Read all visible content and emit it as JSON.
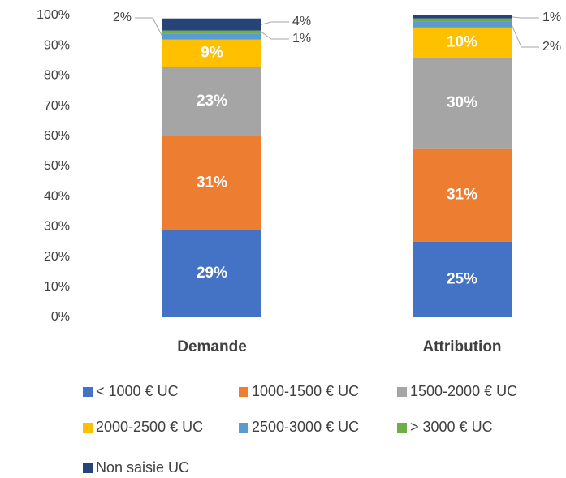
{
  "chart_data": {
    "type": "stacked_bar",
    "categories": [
      "Demande",
      "Attribution"
    ],
    "series": [
      {
        "name": "< 1000 € UC",
        "color": "#4472c4",
        "values": [
          29,
          25
        ],
        "value_labels": [
          "29%",
          "25%"
        ]
      },
      {
        "name": "1000-1500 € UC",
        "color": "#ed7d31",
        "values": [
          31,
          31
        ],
        "value_labels": [
          "31%",
          "31%"
        ]
      },
      {
        "name": "1500-2000 € UC",
        "color": "#a5a5a5",
        "values": [
          23,
          30
        ],
        "value_labels": [
          "23%",
          "30%"
        ]
      },
      {
        "name": "2000-2500 € UC",
        "color": "#ffc000",
        "values": [
          9,
          10
        ],
        "value_labels": [
          "9%",
          "10%"
        ]
      },
      {
        "name": "2500-3000 € UC",
        "color": "#5b9bd5",
        "values": [
          2,
          2
        ],
        "value_labels": [
          "2%",
          "2%"
        ]
      },
      {
        "name": "> 3000 € UC",
        "color": "#70ad47",
        "values": [
          1,
          1
        ],
        "value_labels": [
          "1%",
          null
        ]
      },
      {
        "name": "Non saisie UC",
        "color": "#264478",
        "values": [
          4,
          1
        ],
        "value_labels": [
          "4%",
          "1%"
        ]
      }
    ],
    "ylim": [
      0,
      100
    ],
    "yticks": [
      {
        "value": 0,
        "label": "0%"
      },
      {
        "value": 10,
        "label": "10%"
      },
      {
        "value": 20,
        "label": "20%"
      },
      {
        "value": 30,
        "label": "30%"
      },
      {
        "value": 40,
        "label": "40%"
      },
      {
        "value": 50,
        "label": "50%"
      },
      {
        "value": 60,
        "label": "60%"
      },
      {
        "value": 70,
        "label": "70%"
      },
      {
        "value": 80,
        "label": "80%"
      },
      {
        "value": 90,
        "label": "90%"
      },
      {
        "value": 100,
        "label": "100%"
      }
    ],
    "legend": "bottom"
  }
}
